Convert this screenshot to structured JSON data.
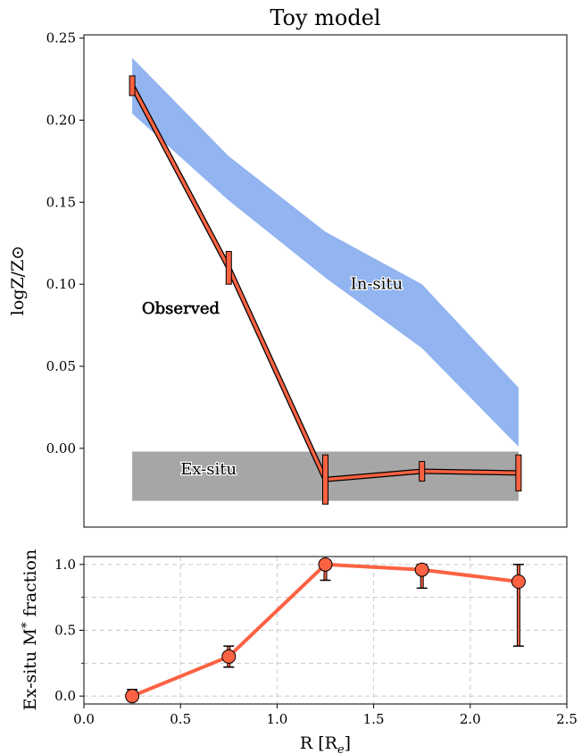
{
  "chart_data": [
    {
      "type": "line",
      "title": "Toy model",
      "xlabel": "",
      "ylabel": "logZ/Z⊙",
      "xlim": [
        0.0,
        2.5
      ],
      "ylim": [
        -0.048,
        0.252
      ],
      "grid": false,
      "yticks": [
        0.0,
        0.05,
        0.1,
        0.15,
        0.2,
        0.25
      ],
      "ytick_labels": [
        "0.00",
        "0.05",
        "0.10",
        "0.15",
        "0.20",
        "0.25"
      ],
      "bands": [
        {
          "label": "In-situ",
          "color": "#92b4f0",
          "x": [
            0.25,
            0.75,
            1.25,
            1.75,
            2.25
          ],
          "lower": [
            0.204,
            0.151,
            0.104,
            0.061,
            0.001
          ],
          "upper": [
            0.238,
            0.178,
            0.132,
            0.1,
            0.037
          ]
        },
        {
          "label": "Ex-situ",
          "color": "#a6a6a6",
          "x": [
            0.25,
            2.25
          ],
          "lower": [
            -0.032,
            -0.032
          ],
          "upper": [
            -0.002,
            -0.002
          ]
        }
      ],
      "series": [
        {
          "name": "Observed",
          "color": "#fb6242",
          "x": [
            0.25,
            0.75,
            1.25,
            1.75,
            2.25
          ],
          "y": [
            0.221,
            0.11,
            -0.019,
            -0.014,
            -0.015
          ],
          "yerr": [
            0.006,
            0.01,
            0.015,
            0.006,
            0.011
          ]
        }
      ],
      "annotations": [
        {
          "text": "Observed",
          "x": 0.3,
          "y": 0.082,
          "color": "#fb6242"
        },
        {
          "text": "In-situ",
          "x": 1.38,
          "y": 0.097,
          "color": "#000000"
        },
        {
          "text": "Ex-situ",
          "x": 0.5,
          "y": -0.016,
          "color": "#000000"
        }
      ]
    },
    {
      "type": "line",
      "title": "",
      "xlabel": "R [R",
      "xlabel_sub": "e",
      "xlabel_end": "]",
      "ylabel": "Ex-situ M",
      "ylabel_sub": "*",
      "ylabel_end": " fraction",
      "xlim": [
        0.0,
        2.5
      ],
      "ylim": [
        -0.06,
        1.06
      ],
      "grid": true,
      "xticks": [
        0.0,
        0.5,
        1.0,
        1.5,
        2.0,
        2.5
      ],
      "xtick_labels": [
        "0.0",
        "0.5",
        "1.0",
        "1.5",
        "2.0",
        "2.5"
      ],
      "yticks": [
        0.0,
        0.5,
        1.0
      ],
      "ytick_labels": [
        "0.0",
        "0.5",
        "1.0"
      ],
      "minor_yticks": [
        0.25,
        0.75
      ],
      "series": [
        {
          "name": "",
          "color": "#fb6242",
          "x": [
            0.25,
            0.75,
            1.25,
            1.75,
            2.25
          ],
          "y": [
            0.0,
            0.3,
            1.0,
            0.96,
            0.87
          ],
          "ylow": [
            0.0,
            0.22,
            0.88,
            0.82,
            0.38
          ],
          "yhigh": [
            0.05,
            0.38,
            1.0,
            1.0,
            1.0
          ]
        }
      ]
    }
  ]
}
